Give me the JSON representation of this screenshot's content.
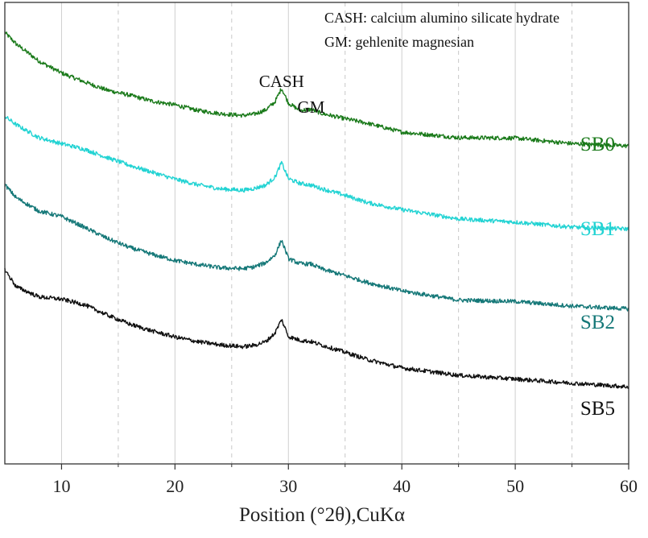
{
  "chart_data": {
    "type": "line",
    "title": "",
    "xlabel": "Position (°2θ),CuKα",
    "ylabel": "",
    "xlim": [
      5,
      60
    ],
    "ylim": [
      0,
      100
    ],
    "grid": "vertical",
    "x_ticks": [
      10,
      20,
      30,
      40,
      50,
      60
    ],
    "x_tick_labels": [
      "10",
      "20",
      "30",
      "40",
      "50",
      "60"
    ],
    "minor_x_gridlines": [
      15,
      25,
      35,
      45,
      55
    ],
    "legend_notes": [
      "CASH: calcium alumino silicate hydrate",
      "GM: gehlenite magnesian"
    ],
    "annotations": [
      {
        "text": "CASH",
        "x": 29.4
      },
      {
        "text": "GM",
        "x": 32.0
      }
    ],
    "series": [
      {
        "name": "SB0",
        "color": "#1a7a1a",
        "x": [
          5,
          6,
          8,
          10,
          12,
          14,
          16,
          18,
          20,
          22,
          24,
          26,
          27,
          28,
          28.8,
          29.4,
          30.0,
          31,
          32,
          33,
          35,
          37,
          40,
          45,
          50,
          55,
          60
        ],
        "values": [
          93.5,
          91,
          87.3,
          84.7,
          82.8,
          81,
          79.9,
          78.6,
          77.8,
          76.6,
          75.9,
          75.5,
          75.8,
          76.7,
          78.4,
          81.4,
          78.2,
          76.6,
          76.8,
          75.9,
          74.8,
          73.8,
          71.9,
          70.7,
          70.6,
          69.4,
          68.9
        ]
      },
      {
        "name": "SB1",
        "color": "#22d3d3",
        "x": [
          5,
          6,
          8,
          10,
          12,
          14,
          16,
          18,
          20,
          22,
          24,
          26,
          27,
          28,
          28.8,
          29.4,
          30.0,
          31,
          32,
          33,
          35,
          37,
          40,
          45,
          50,
          55,
          60
        ],
        "values": [
          75.3,
          73.5,
          70.7,
          69.4,
          68.2,
          66.4,
          64.7,
          63.2,
          61.7,
          60.5,
          59.6,
          59.3,
          59.7,
          60.4,
          62.1,
          65.3,
          61.8,
          60.8,
          60.4,
          59.6,
          58.2,
          56.6,
          55.1,
          53.1,
          52.4,
          51.3,
          50.9
        ]
      },
      {
        "name": "SB2",
        "color": "#157878",
        "x": [
          5,
          6,
          8,
          10,
          12,
          14,
          16,
          18,
          20,
          22,
          24,
          26,
          27,
          28,
          28.8,
          29.4,
          30.0,
          31,
          32,
          33,
          35,
          37,
          40,
          45,
          50,
          55,
          60
        ],
        "values": [
          60.5,
          57.7,
          54.8,
          53.6,
          51.3,
          48.9,
          46.9,
          45.4,
          44.1,
          43.2,
          42.5,
          42.3,
          42.7,
          43.6,
          45.2,
          48.5,
          44.5,
          43.4,
          43.3,
          42.2,
          40.8,
          39.3,
          37.5,
          35.5,
          35.2,
          34.2,
          33.6
        ]
      },
      {
        "name": "SB5",
        "color": "#111111",
        "x": [
          5,
          6,
          8,
          10,
          12,
          14,
          16,
          18,
          20,
          22,
          24,
          26,
          27,
          28,
          28.8,
          29.4,
          30.0,
          31,
          32,
          33,
          35,
          37,
          40,
          45,
          50,
          55,
          60
        ],
        "values": [
          42.1,
          38.4,
          36.2,
          35.7,
          34.5,
          32.3,
          30.3,
          28.8,
          27.5,
          26.5,
          25.8,
          25.4,
          25.7,
          26.5,
          28.3,
          31.3,
          27.6,
          26.8,
          26.5,
          25.7,
          24.2,
          22.6,
          20.8,
          19.2,
          18.4,
          17.5,
          16.7
        ]
      }
    ]
  }
}
